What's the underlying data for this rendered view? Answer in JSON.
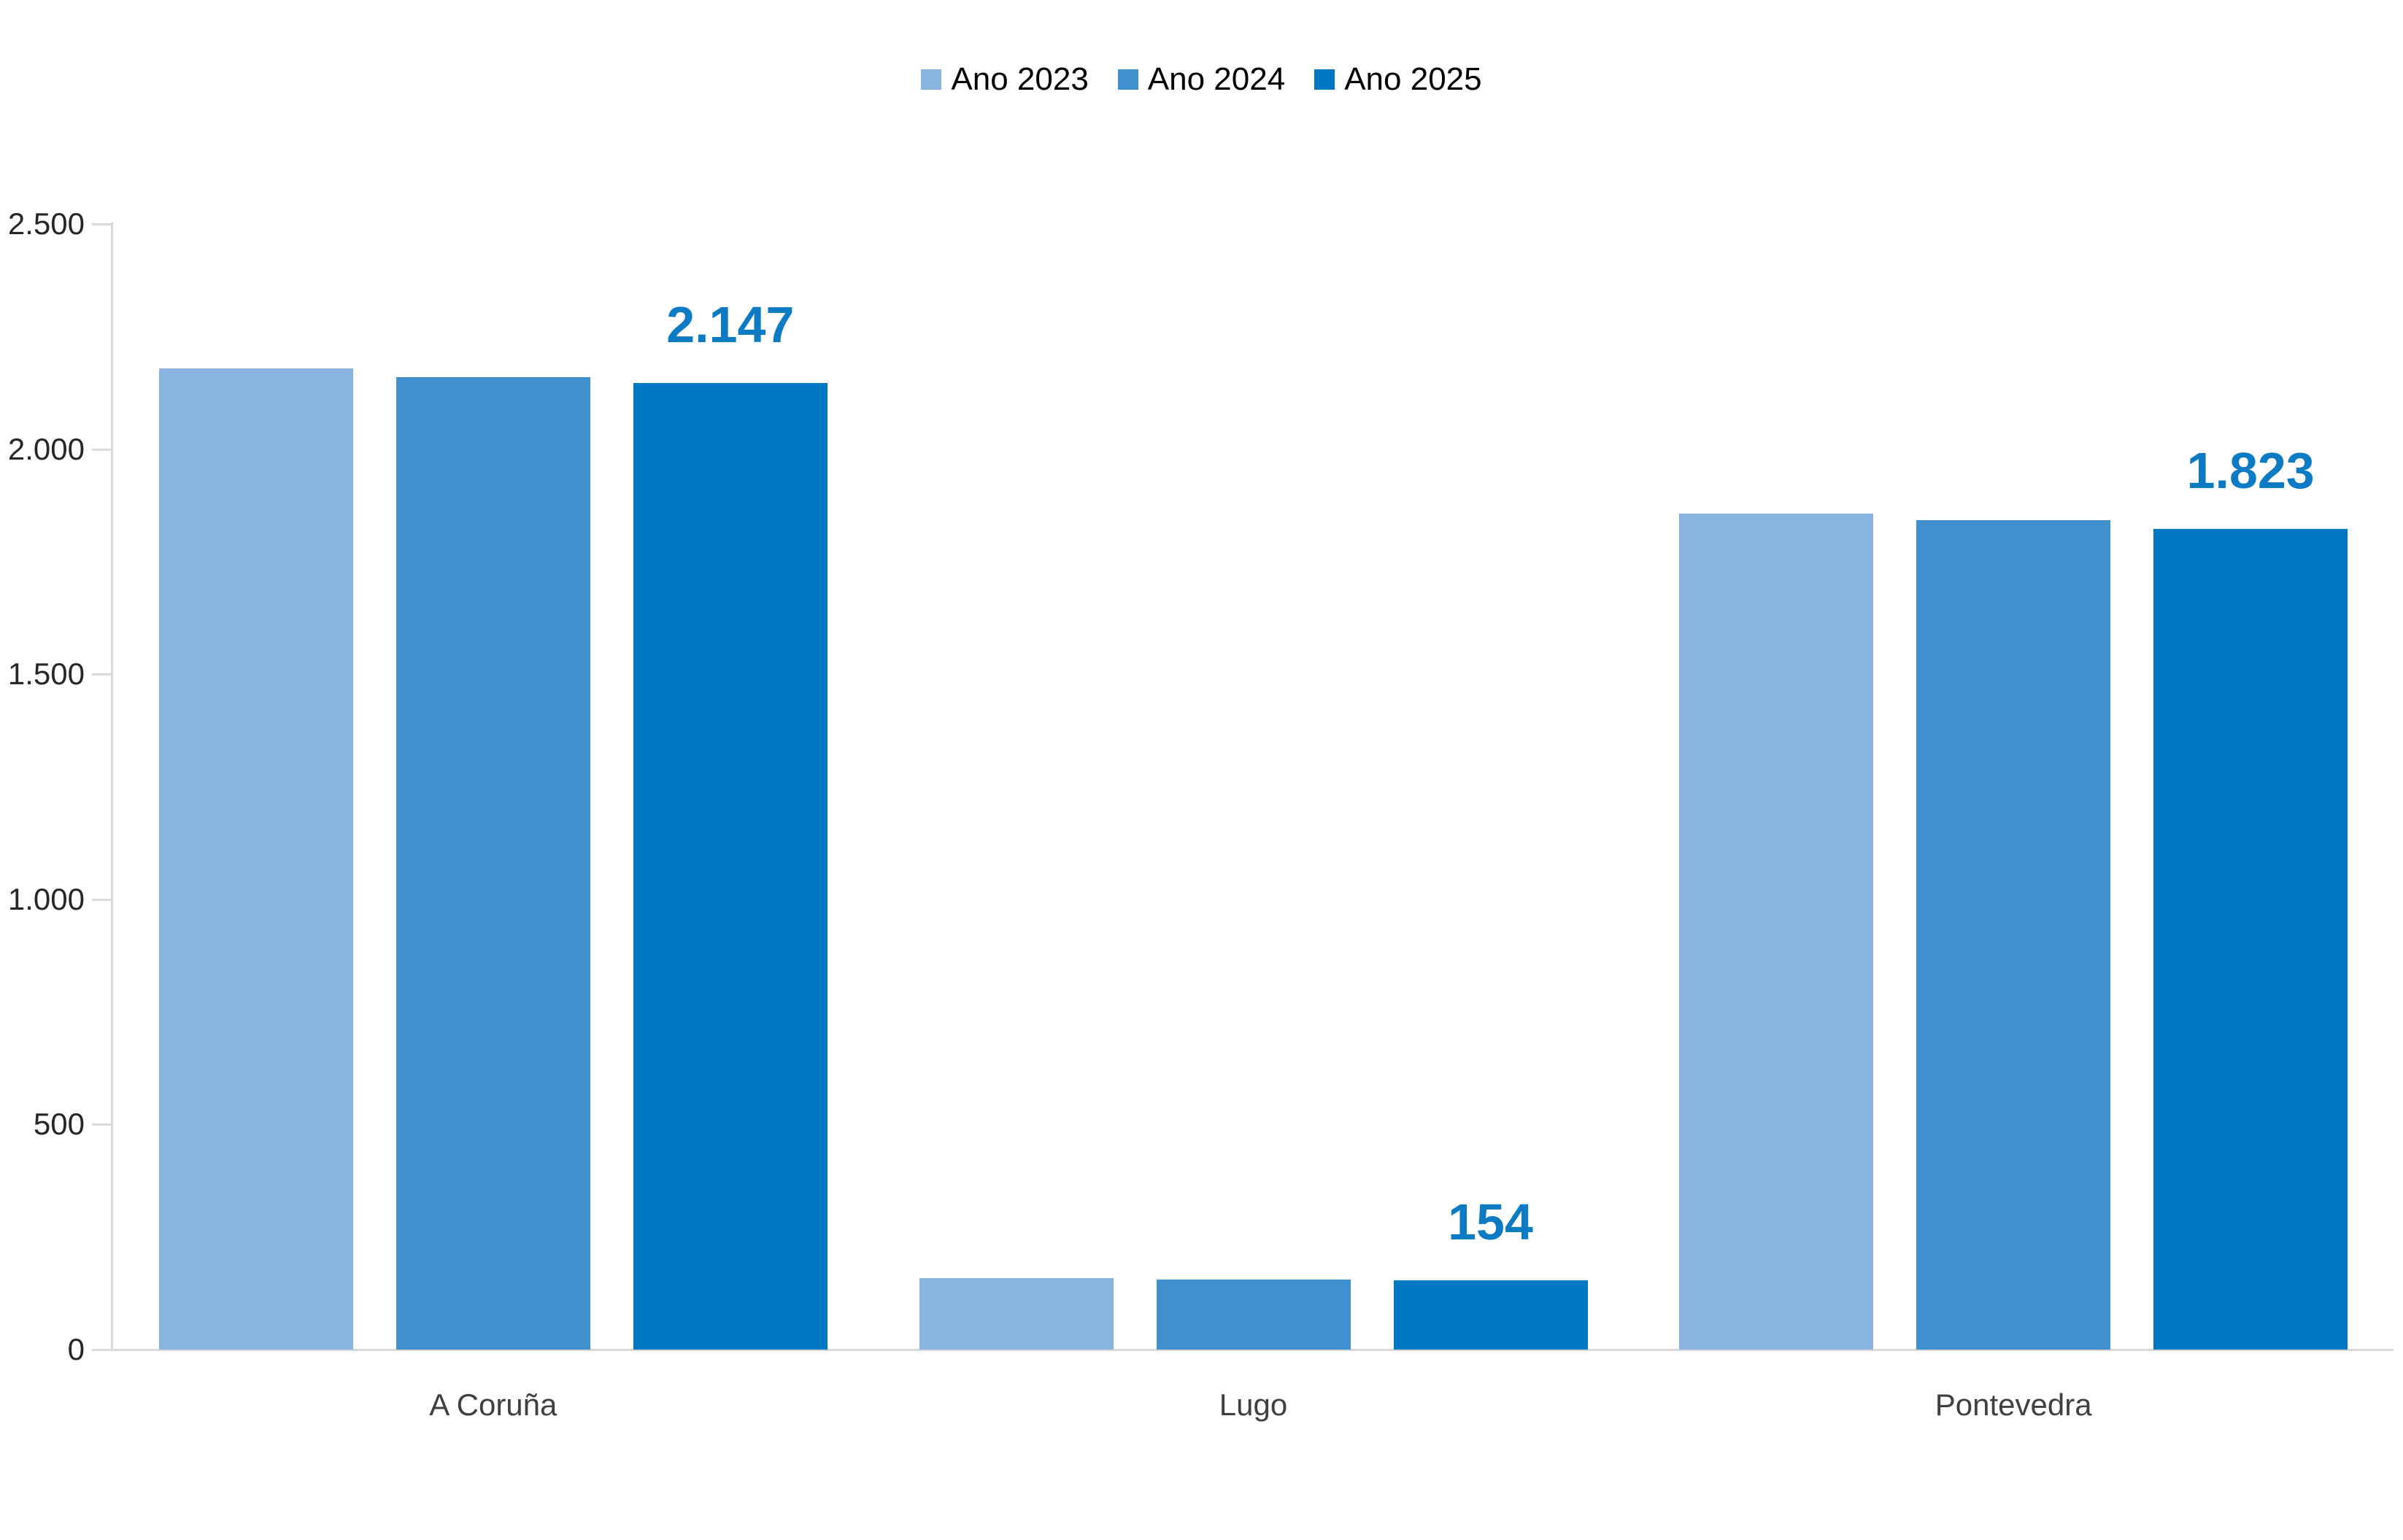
{
  "chart_data": {
    "type": "bar",
    "title": "",
    "categories": [
      "A Coruña",
      "Lugo",
      "Pontevedra"
    ],
    "series": [
      {
        "name": "Ano 2023",
        "color": "#8ab4e0",
        "values": [
          2180,
          158,
          1856
        ]
      },
      {
        "name": "Ano 2024",
        "color": "#4190ce",
        "values": [
          2160,
          155,
          1843
        ]
      },
      {
        "name": "Ano 2025",
        "color": "#0079c2",
        "values": [
          2147,
          154,
          1823
        ]
      }
    ],
    "data_labels": {
      "series": "Ano 2025",
      "values": [
        "2.147",
        "154",
        "1.823"
      ],
      "color": "#0c7bc4"
    },
    "y_axis": {
      "ticks": [
        0,
        500,
        1000,
        1500,
        2000,
        2500
      ],
      "tick_labels": [
        "0",
        "500",
        "1.000",
        "1.500",
        "2.000",
        "2.500"
      ],
      "ylim": [
        0,
        2500
      ]
    },
    "legend": {
      "position": "top",
      "items": [
        "Ano 2023",
        "Ano 2024",
        "Ano 2025"
      ]
    },
    "grid": false,
    "axis_color": "#d9d9d9",
    "tick_label_color": "#262626",
    "category_label_color": "#3f3f3f"
  }
}
